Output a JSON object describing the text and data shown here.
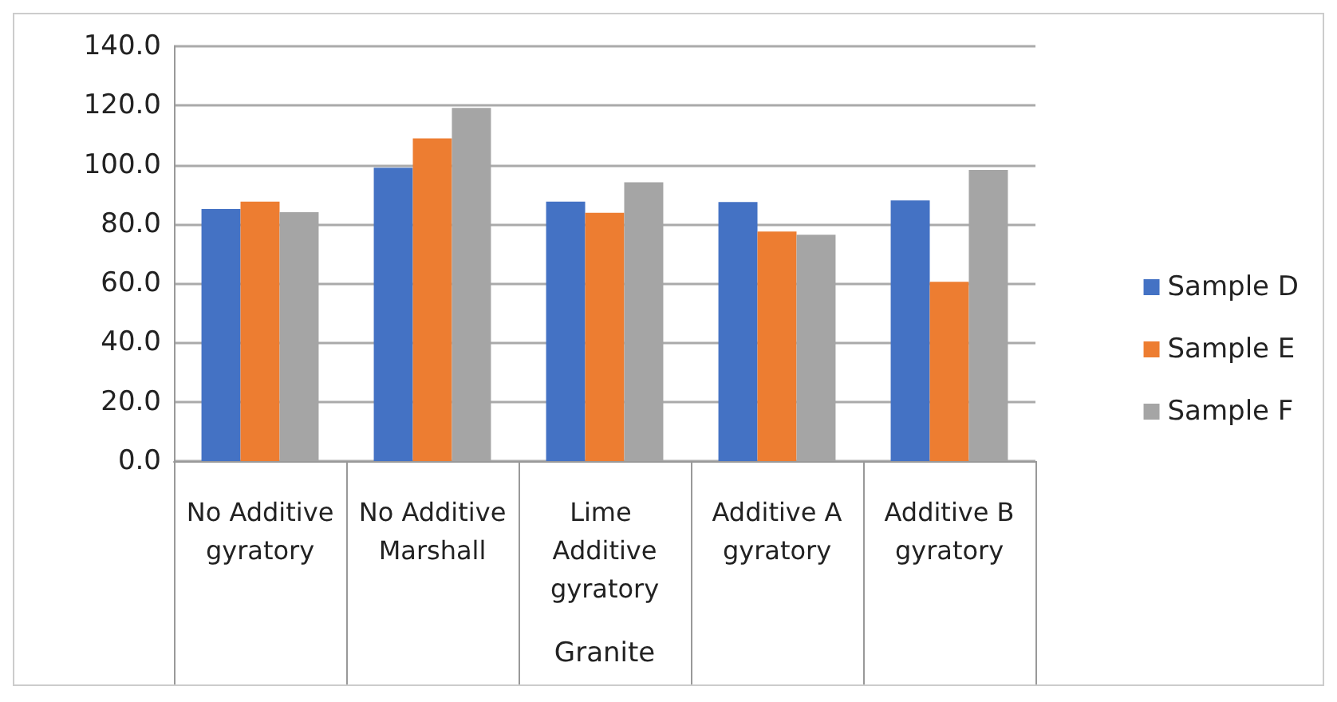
{
  "chart_data": {
    "type": "bar",
    "categories": [
      "No Additive\ngyratory",
      "No Additive\nMarshall",
      "Lime Additive\ngyratory",
      "Additive A\ngyratory",
      "Additive B\ngyratory"
    ],
    "xlabel": "Granite",
    "series": [
      {
        "name": "Sample D",
        "color": "#4472c4",
        "values": [
          85.1,
          99.0,
          87.6,
          87.4,
          88.0
        ]
      },
      {
        "name": "Sample E",
        "color": "#ed7d31",
        "values": [
          87.6,
          108.9,
          83.8,
          77.5,
          60.5
        ]
      },
      {
        "name": "Sample F",
        "color": "#a5a5a5",
        "values": [
          84.0,
          119.2,
          94.1,
          76.4,
          98.3
        ]
      }
    ],
    "ylim": [
      0,
      140
    ],
    "yticks": [
      {
        "value": 0,
        "label": "0.0"
      },
      {
        "value": 20,
        "label": "20.0"
      },
      {
        "value": 40,
        "label": "40.0"
      },
      {
        "value": 60,
        "label": "60.0"
      },
      {
        "value": 80,
        "label": "80.0"
      },
      {
        "value": 100,
        "label": "100.0"
      },
      {
        "value": 120,
        "label": "120.0"
      },
      {
        "value": 140,
        "label": "140.0"
      }
    ],
    "grid": "y",
    "legend": "right"
  }
}
